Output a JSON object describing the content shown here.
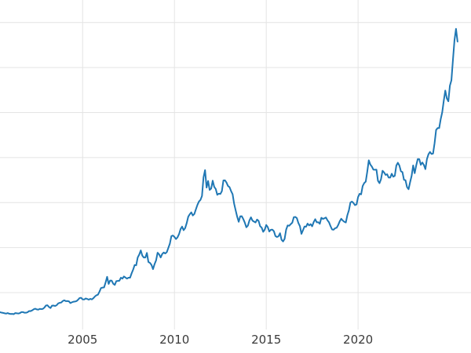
{
  "chart_data": {
    "type": "line",
    "title": "",
    "xlabel": "",
    "ylabel": "",
    "grid": true,
    "legend": "none",
    "xlim": [
      2000.5,
      2026.15
    ],
    "ylim": [
      90,
      3750
    ],
    "x_ticks": [
      {
        "value": 2005,
        "label": "2005"
      },
      {
        "value": 2010,
        "label": "2010"
      },
      {
        "value": 2015,
        "label": "2015"
      },
      {
        "value": 2020,
        "label": "2020"
      }
    ],
    "y_gridlines": [
      500,
      1000,
      1500,
      2000,
      2500,
      3000,
      3500
    ],
    "styles": {
      "line_color": "#1f77b4",
      "line_width": 2,
      "grid_color": "#e4e4e4",
      "tick_label_color": "#3b3b3b",
      "background": "#ffffff"
    },
    "series": [
      {
        "x_start": 2000.5,
        "x_step_years": 0.0833333,
        "values": [
          282,
          277,
          274,
          270,
          266,
          272,
          265,
          262,
          263,
          260,
          272,
          270,
          267,
          272,
          283,
          283,
          276,
          276,
          281,
          295,
          294,
          302,
          314,
          321,
          313,
          310,
          319,
          316,
          319,
          333,
          356,
          359,
          340,
          328,
          355,
          356,
          351,
          359,
          379,
          386,
          389,
          406,
          414,
          405,
          406,
          403,
          383,
          392,
          398,
          400,
          405,
          420,
          439,
          442,
          424,
          423,
          434,
          429,
          421,
          430,
          424,
          437,
          456,
          470,
          476,
          510,
          550,
          555,
          557,
          611,
          675,
          596,
          634,
          632,
          598,
          585,
          627,
          629,
          631,
          665,
          655,
          679,
          667,
          655,
          665,
          665,
          713,
          754,
          806,
          803,
          890,
          922,
          968,
          910,
          889,
          889,
          940,
          839,
          830,
          807,
          760,
          816,
          858,
          943,
          924,
          890,
          928,
          945,
          934,
          949,
          996,
          1043,
          1127,
          1134,
          1118,
          1095,
          1113,
          1149,
          1205,
          1233,
          1193,
          1216,
          1271,
          1342,
          1370,
          1391,
          1356,
          1373,
          1424,
          1473,
          1511,
          1529,
          1573,
          1780,
          1860,
          1666,
          1739,
          1640,
          1655,
          1743,
          1674,
          1650,
          1586,
          1599,
          1595,
          1627,
          1746,
          1747,
          1722,
          1684,
          1671,
          1628,
          1593,
          1487,
          1414,
          1343,
          1286,
          1347,
          1348,
          1316,
          1276,
          1225,
          1244,
          1301,
          1336,
          1299,
          1288,
          1279,
          1311,
          1296,
          1237,
          1222,
          1175,
          1199,
          1251,
          1227,
          1178,
          1198,
          1199,
          1181,
          1128,
          1117,
          1125,
          1159,
          1086,
          1068,
          1097,
          1199,
          1246,
          1242,
          1260,
          1276,
          1337,
          1340,
          1327,
          1272,
          1238,
          1152,
          1192,
          1234,
          1231,
          1266,
          1246,
          1260,
          1236,
          1283,
          1315,
          1280,
          1282,
          1264,
          1331,
          1318,
          1325,
          1334,
          1303,
          1281,
          1238,
          1201,
          1198,
          1215,
          1220,
          1250,
          1291,
          1320,
          1300,
          1286,
          1279,
          1359,
          1413,
          1500,
          1511,
          1495,
          1471,
          1479,
          1561,
          1597,
          1591,
          1683,
          1716,
          1732,
          1843,
          1969,
          1922,
          1900,
          1866,
          1864,
          1866,
          1742,
          1715,
          1760,
          1853,
          1835,
          1807,
          1814,
          1777,
          1777,
          1820,
          1787,
          1797,
          1910,
          1942,
          1911,
          1848,
          1837,
          1753,
          1747,
          1671,
          1648,
          1726,
          1797,
          1912,
          1826,
          1912,
          1983,
          1982,
          1919,
          1945,
          1918,
          1871,
          1983,
          2036,
          2062,
          2039,
          2044,
          2160,
          2307,
          2327,
          2327,
          2426,
          2503,
          2630,
          2744,
          2657,
          2625,
          2798,
          2858,
          3085,
          3302,
          3430,
          3288
        ]
      }
    ]
  }
}
